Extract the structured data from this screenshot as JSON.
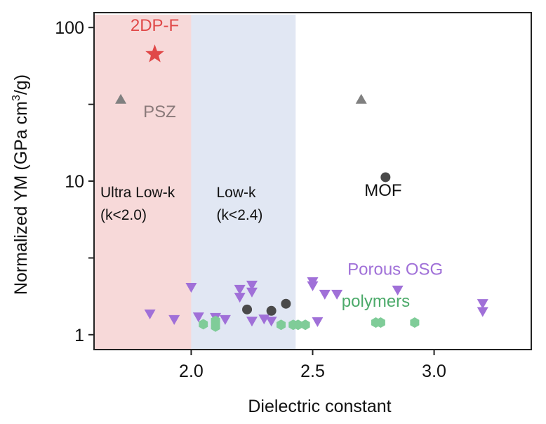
{
  "chart_data": {
    "type": "scatter",
    "title": "",
    "xlabel": "Dielectric constant",
    "ylabel": "Normalized YM  (GPa cm",
    "ylabel_sup": "3",
    "ylabel_tail": "/g)",
    "xlim": [
      1.6,
      3.4
    ],
    "ylim": [
      0.8,
      125
    ],
    "yscale": "log",
    "grid": false,
    "xticks": [
      {
        "value": 2.0,
        "label": "2.0"
      },
      {
        "value": 2.5,
        "label": "2.5"
      },
      {
        "value": 3.0,
        "label": "3.0"
      }
    ],
    "yticks": [
      {
        "value": 1,
        "label": "1"
      },
      {
        "value": 10,
        "label": "10"
      },
      {
        "value": 100,
        "label": "100"
      }
    ],
    "yminor_ticks": [
      3.16,
      31.6
    ],
    "regions": [
      {
        "name": "Ultra Low-k",
        "x0": 1.6,
        "x1": 2.0,
        "color": "#f7d9d9",
        "label_lines": [
          "Ultra Low-k",
          "(k<2.0)"
        ],
        "label_color": "#111111"
      },
      {
        "name": "Low-k",
        "x0": 2.0,
        "x1": 2.43,
        "color": "#e1e7f3",
        "label_lines": [
          "Low-k",
          "(k<2.4)"
        ],
        "label_color": "#111111"
      }
    ],
    "series": [
      {
        "name": "2DP-F",
        "marker": "star",
        "color": "#e04848",
        "points": [
          [
            1.85,
            67
          ]
        ],
        "label": {
          "text": "2DP-F",
          "x": 1.85,
          "y": 95,
          "color": "#e04848"
        }
      },
      {
        "name": "PSZ",
        "marker": "triangle-up",
        "color": "#808080",
        "points": [
          [
            1.71,
            34
          ],
          [
            2.7,
            34
          ]
        ],
        "label": {
          "text": "PSZ",
          "x": 1.87,
          "y": 26,
          "color": "#8a7a7a"
        }
      },
      {
        "name": "MOF",
        "marker": "circle",
        "color": "#4a4a4a",
        "points": [
          [
            2.8,
            10.6
          ],
          [
            2.23,
            1.46
          ],
          [
            2.33,
            1.43
          ],
          [
            2.39,
            1.59
          ]
        ],
        "label": {
          "text": "MOF",
          "x": 2.79,
          "y": 8.0,
          "color": "#111111"
        }
      },
      {
        "name": "Porous OSG",
        "marker": "triangle-down",
        "color": "#a070d8",
        "points": [
          [
            1.83,
            1.37
          ],
          [
            1.93,
            1.26
          ],
          [
            2.0,
            2.04
          ],
          [
            2.03,
            1.31
          ],
          [
            2.1,
            1.3
          ],
          [
            2.14,
            1.26
          ],
          [
            2.2,
            1.98
          ],
          [
            2.2,
            1.76
          ],
          [
            2.25,
            2.11
          ],
          [
            2.25,
            1.9
          ],
          [
            2.25,
            1.23
          ],
          [
            2.3,
            1.27
          ],
          [
            2.33,
            1.23
          ],
          [
            2.5,
            2.22
          ],
          [
            2.5,
            2.09
          ],
          [
            2.52,
            1.22
          ],
          [
            2.55,
            1.84
          ],
          [
            2.6,
            1.84
          ],
          [
            2.85,
            1.96
          ],
          [
            3.2,
            1.6
          ],
          [
            3.2,
            1.42
          ]
        ],
        "label": {
          "text": "Porous OSG",
          "x": 2.84,
          "y": 2.45,
          "color": "#a070d8"
        }
      },
      {
        "name": "polymers",
        "marker": "hexagon",
        "color": "#7fcc98",
        "points": [
          [
            2.05,
            1.17
          ],
          [
            2.1,
            1.23
          ],
          [
            2.1,
            1.13
          ],
          [
            2.37,
            1.16
          ],
          [
            2.42,
            1.16
          ],
          [
            2.44,
            1.16
          ],
          [
            2.47,
            1.16
          ],
          [
            2.76,
            1.2
          ],
          [
            2.78,
            1.2
          ],
          [
            2.92,
            1.2
          ]
        ],
        "label": {
          "text": "polymers",
          "x": 2.76,
          "y": 1.52,
          "color": "#4caa6a"
        }
      }
    ]
  }
}
